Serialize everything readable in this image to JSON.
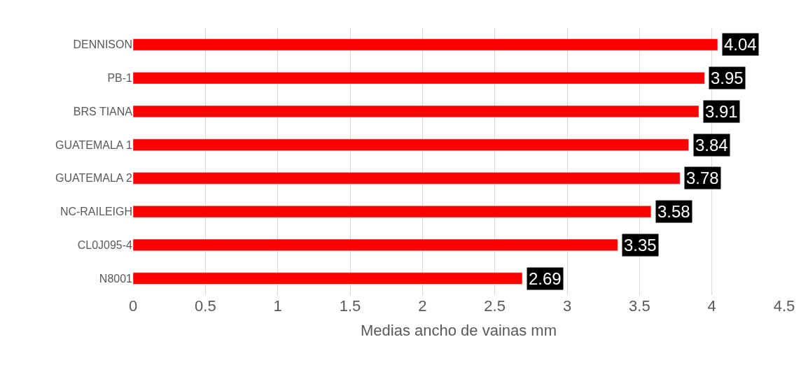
{
  "chart_data": {
    "type": "bar",
    "orientation": "horizontal",
    "xlabel": "Medias ancho de vainas mm",
    "categories": [
      "DENNISON",
      "PB-1",
      "BRS TIANA",
      "GUATEMALA 1",
      "GUATEMALA 2",
      "NC-RAILEIGH",
      "CL0J095-4",
      "N8001"
    ],
    "values": [
      4.04,
      3.95,
      3.91,
      3.84,
      3.78,
      3.58,
      3.35,
      2.69
    ],
    "color": "#ff0000",
    "xlim": [
      0,
      4.5
    ],
    "xticks": [
      0,
      0.5,
      1,
      1.5,
      2,
      2.5,
      3,
      3.5,
      4,
      4.5
    ],
    "grid": "x",
    "data_labels": true
  }
}
